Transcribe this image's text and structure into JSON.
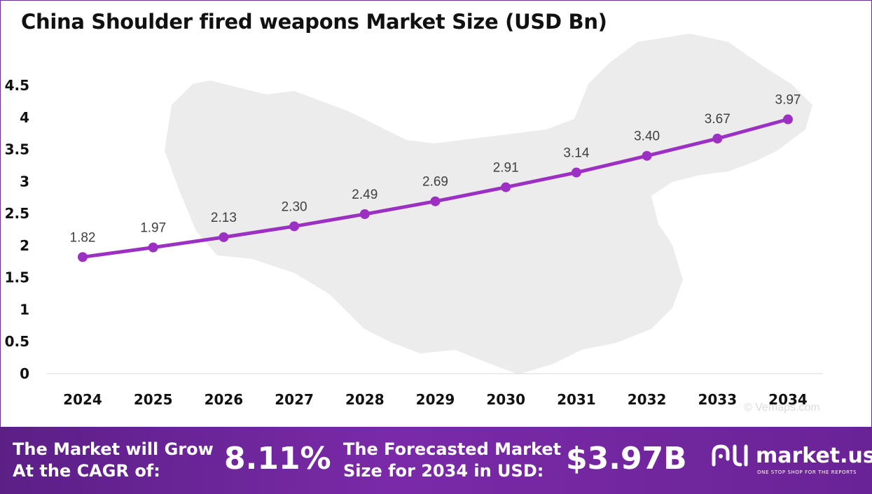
{
  "title": "China Shoulder fired weapons Market Size (USD Bn)",
  "watermark": "© Vemaps.com",
  "colors": {
    "line": "#9b30c2",
    "marker": "#9b30c2",
    "footer": "#6a2396",
    "map": "#ececec"
  },
  "chart_data": {
    "type": "line",
    "title": "China Shoulder fired weapons Market Size (USD Bn)",
    "xlabel": "",
    "ylabel": "",
    "categories": [
      "2024",
      "2025",
      "2026",
      "2027",
      "2028",
      "2029",
      "2030",
      "2031",
      "2032",
      "2033",
      "2034"
    ],
    "series": [
      {
        "values": [
          1.82,
          1.97,
          2.13,
          2.3,
          2.49,
          2.69,
          2.91,
          3.14,
          3.4,
          3.67,
          3.97
        ],
        "labels": [
          "1.82",
          "1.97",
          "2.13",
          "2.30",
          "2.49",
          "2.69",
          "2.91",
          "3.14",
          "3.40",
          "3.67",
          "3.97"
        ]
      }
    ],
    "ylim": [
      0,
      4.5
    ],
    "yticks": [
      "0",
      "0.5",
      "1",
      "1.5",
      "2",
      "2.5",
      "3",
      "3.5",
      "4",
      "4.5"
    ],
    "grid": false,
    "legend": "none"
  },
  "footer": {
    "cagr_line1": "The Market will Grow",
    "cagr_line2": "At the CAGR of:",
    "cagr_value": "8.11%",
    "forecast_line1": "The Forecasted Market",
    "forecast_line2": "Size for 2034 in USD:",
    "forecast_value": "$3.97B",
    "brand_name": "market.us",
    "brand_tagline": "ONE STOP SHOP FOR THE REPORTS",
    "brand_icon": "market-us-logo-icon"
  }
}
